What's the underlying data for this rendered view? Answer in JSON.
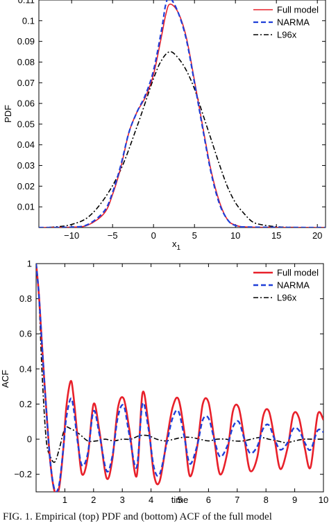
{
  "chart_data": [
    {
      "type": "line",
      "ylabel": "PDF",
      "xlabel_main": "x",
      "xlabel_sub": "1",
      "xlim": [
        -14,
        21
      ],
      "ylim": [
        0,
        0.11
      ],
      "xticks": [
        -10,
        -5,
        0,
        5,
        10,
        15,
        20
      ],
      "xtick_labels": [
        "−10",
        "−5",
        "0",
        "5",
        "10",
        "15",
        "20"
      ],
      "yticks": [
        0.01,
        0.02,
        0.03,
        0.04,
        0.05,
        0.06,
        0.07,
        0.08,
        0.09,
        0.1,
        0.11
      ],
      "ytick_labels": [
        "0.01",
        "0.02",
        "0.03",
        "0.04",
        "0.05",
        "0.06",
        "0.07",
        "0.08",
        "0.09",
        "0.1",
        "0.11"
      ],
      "legend_position": "top-right",
      "series": [
        {
          "name": "Full model",
          "color": "#e8202a",
          "style": "solid",
          "x": [
            -14,
            -10,
            -8,
            -6,
            -5,
            -4,
            -3,
            -2,
            -1,
            0,
            1,
            1.5,
            2,
            3,
            4,
            5,
            6,
            7,
            8,
            9,
            10,
            12,
            21
          ],
          "y": [
            0,
            0.0002,
            0.0012,
            0.007,
            0.016,
            0.029,
            0.046,
            0.056,
            0.063,
            0.074,
            0.093,
            0.103,
            0.108,
            0.104,
            0.092,
            0.071,
            0.049,
            0.028,
            0.013,
            0.004,
            0.0012,
            0.0002,
            0
          ]
        },
        {
          "name": "NARMA",
          "color": "#1f3fd8",
          "style": "dashed",
          "x": [
            -14,
            -10,
            -8,
            -6,
            -5,
            -4,
            -3,
            -2,
            -1,
            0,
            1,
            1.5,
            2,
            3,
            4,
            5,
            6,
            7,
            8,
            9,
            10,
            12,
            21
          ],
          "y": [
            0,
            0.0002,
            0.0015,
            0.008,
            0.017,
            0.03,
            0.046,
            0.056,
            0.064,
            0.076,
            0.096,
            0.108,
            0.111,
            0.104,
            0.091,
            0.07,
            0.048,
            0.027,
            0.012,
            0.004,
            0.001,
            0.0002,
            0
          ]
        },
        {
          "name": "L96x",
          "color": "#000000",
          "style": "dashdot",
          "x": [
            -14,
            -12,
            -10,
            -8,
            -6,
            -4,
            -2,
            0,
            1,
            2,
            3,
            4,
            5,
            6,
            7,
            8,
            9,
            10,
            11,
            12,
            13,
            15,
            17,
            21
          ],
          "y": [
            0,
            0.0003,
            0.0015,
            0.005,
            0.014,
            0.028,
            0.049,
            0.072,
            0.081,
            0.085,
            0.082,
            0.076,
            0.067,
            0.055,
            0.043,
            0.031,
            0.02,
            0.012,
            0.007,
            0.003,
            0.0015,
            0.0004,
            0.0001,
            0
          ]
        }
      ]
    },
    {
      "type": "line",
      "ylabel": "ACF",
      "xlabel": "time",
      "xlim": [
        0,
        10
      ],
      "ylim": [
        -0.3,
        1
      ],
      "xticks": [
        1,
        2,
        3,
        4,
        5,
        6,
        7,
        8,
        9,
        10
      ],
      "xtick_labels": [
        "1",
        "2",
        "3",
        "4",
        "5",
        "6",
        "7",
        "8",
        "9",
        "10"
      ],
      "yticks": [
        -0.2,
        0,
        0.2,
        0.4,
        0.6,
        0.8,
        1
      ],
      "ytick_labels": [
        "−0.2",
        "0",
        "0.2",
        "0.4",
        "0.6",
        "0.8",
        "1"
      ],
      "legend_position": "top-right",
      "series": [
        {
          "name": "Full model",
          "color": "#e8202a",
          "style": "solid",
          "x": [
            0,
            0.1,
            0.2,
            0.35,
            0.5,
            0.65,
            0.8,
            0.95,
            1.05,
            1.2,
            1.3,
            1.45,
            1.6,
            1.8,
            2.0,
            2.2,
            2.45,
            2.65,
            2.85,
            3.05,
            3.25,
            3.5,
            3.7,
            3.9,
            4.1,
            4.3,
            4.55,
            4.75,
            4.95,
            5.15,
            5.35,
            5.6,
            5.8,
            6.0,
            6.2,
            6.4,
            6.65,
            6.85,
            7.05,
            7.25,
            7.45,
            7.7,
            7.9,
            8.1,
            8.3,
            8.5,
            8.75,
            8.95,
            9.15,
            9.35,
            9.55,
            9.8,
            10
          ],
          "y": [
            1,
            0.82,
            0.55,
            0.18,
            -0.14,
            -0.3,
            -0.28,
            -0.05,
            0.18,
            0.33,
            0.25,
            0.0,
            -0.2,
            -0.1,
            0.2,
            0.05,
            -0.22,
            -0.12,
            0.18,
            0.23,
            0.05,
            -0.21,
            0.26,
            0.1,
            -0.2,
            -0.24,
            0.0,
            0.18,
            0.23,
            0.05,
            -0.21,
            -0.05,
            0.2,
            0.21,
            0.0,
            -0.2,
            -0.08,
            0.16,
            0.18,
            0.0,
            -0.18,
            -0.1,
            0.13,
            0.16,
            0.0,
            -0.17,
            -0.05,
            0.14,
            0.12,
            -0.05,
            -0.16,
            0.14,
            0.11
          ]
        },
        {
          "name": "NARMA",
          "color": "#1f3fd8",
          "style": "dashed",
          "x": [
            0,
            0.1,
            0.2,
            0.35,
            0.5,
            0.65,
            0.8,
            0.95,
            1.05,
            1.2,
            1.3,
            1.45,
            1.6,
            1.8,
            2.0,
            2.2,
            2.45,
            2.65,
            2.85,
            3.05,
            3.25,
            3.5,
            3.7,
            3.9,
            4.1,
            4.3,
            4.55,
            4.75,
            4.95,
            5.15,
            5.35,
            5.6,
            5.8,
            6.0,
            6.2,
            6.4,
            6.65,
            6.85,
            7.05,
            7.25,
            7.45,
            7.7,
            7.9,
            8.1,
            8.3,
            8.5,
            8.75,
            8.95,
            9.15,
            9.35,
            9.55,
            9.8,
            10
          ],
          "y": [
            1,
            0.82,
            0.55,
            0.18,
            -0.14,
            -0.29,
            -0.26,
            -0.05,
            0.12,
            0.23,
            0.18,
            -0.02,
            -0.15,
            -0.08,
            0.16,
            0.03,
            -0.18,
            -0.1,
            0.13,
            0.19,
            0.02,
            -0.16,
            0.2,
            0.07,
            -0.16,
            -0.2,
            -0.02,
            0.12,
            0.16,
            0.02,
            -0.14,
            -0.04,
            0.11,
            0.12,
            0.0,
            -0.1,
            -0.04,
            0.07,
            0.1,
            0.0,
            -0.08,
            -0.04,
            0.06,
            0.08,
            0.0,
            -0.06,
            -0.02,
            0.06,
            0.05,
            -0.02,
            -0.06,
            0.05,
            0.04
          ]
        },
        {
          "name": "L96x",
          "color": "#000000",
          "style": "dashdot",
          "x": [
            0,
            0.1,
            0.2,
            0.35,
            0.5,
            0.65,
            0.8,
            1.0,
            1.2,
            1.5,
            1.8,
            2.1,
            2.4,
            2.7,
            3.0,
            3.3,
            3.6,
            3.9,
            4.2,
            4.5,
            4.8,
            5.1,
            5.4,
            5.7,
            6.0,
            6.3,
            6.6,
            6.9,
            7.2,
            7.5,
            7.8,
            8.1,
            8.4,
            8.7,
            9.0,
            9.3,
            9.6,
            10
          ],
          "y": [
            1,
            0.8,
            0.4,
            0.0,
            -0.1,
            -0.13,
            -0.06,
            0.06,
            0.06,
            0.03,
            -0.01,
            -0.01,
            0.0,
            -0.01,
            0.0,
            0.0,
            0.02,
            0.02,
            0.0,
            -0.01,
            0.0,
            0.01,
            0.01,
            0.0,
            -0.01,
            0.0,
            0.0,
            -0.01,
            -0.01,
            0.0,
            0.01,
            0.0,
            -0.01,
            -0.02,
            -0.01,
            0.0,
            0.0,
            0.0
          ]
        }
      ]
    }
  ],
  "caption": "FIG. 1. Empirical (top) PDF and (bottom) ACF of the full model"
}
